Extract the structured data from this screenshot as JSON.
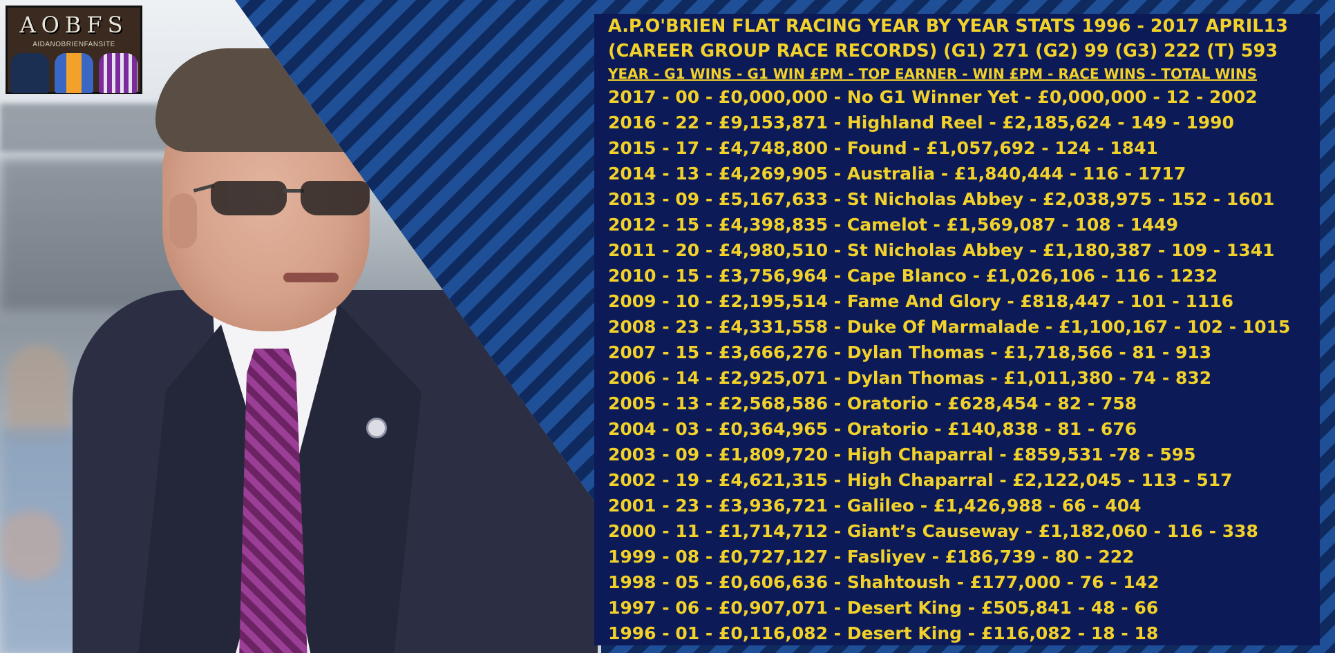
{
  "logo": {
    "title": "AOBFS",
    "subtitle": "AIDANOBRIENFANSITE"
  },
  "panel": {
    "title_line1": "A.P.O'BRIEN FLAT RACING YEAR BY YEAR STATS 1996 - 2017 APRIL13",
    "title_line2": "(CAREER GROUP RACE RECORDS) (G1) 271 (G2) 99 (G3) 222 (T) 593",
    "header": "YEAR - G1 WINS - G1 WIN £PM - TOP EARNER - WIN £PM - RACE WINS - TOTAL WINS",
    "rows": [
      "2017 - 00 - £0,000,000 - No G1 Winner Yet - £0,000,000 - 12 - 2002",
      "2016 - 22 - £9,153,871 - Highland Reel - £2,185,624 - 149 - 1990",
      "2015 - 17 - £4,748,800 - Found - £1,057,692 - 124 - 1841",
      "2014 - 13 - £4,269,905 - Australia - £1,840,444 - 116 - 1717",
      "2013 - 09 - £5,167,633 - St Nicholas Abbey - £2,038,975 - 152 - 1601",
      "2012 - 15 - £4,398,835 - Camelot - £1,569,087 - 108 - 1449",
      "2011 - 20 - £4,980,510 - St Nicholas Abbey - £1,180,387 - 109 - 1341",
      "2010 - 15 - £3,756,964 - Cape Blanco - £1,026,106 - 116 - 1232",
      "2009 - 10 - £2,195,514 - Fame And Glory - £818,447 - 101 - 1116",
      "2008 - 23 - £4,331,558 - Duke Of Marmalade - £1,100,167 - 102 - 1015",
      "2007 - 15 - £3,666,276 - Dylan Thomas - £1,718,566 - 81 - 913",
      "2006 - 14 - £2,925,071 - Dylan Thomas - £1,011,380 - 74 - 832",
      "2005 - 13 - £2,568,586 - Oratorio - £628,454 - 82 - 758",
      "2004 - 03 - £0,364,965 - Oratorio - £140,838 - 81 - 676",
      "2003 - 09 - £1,809,720 - High Chaparral - £859,531 -78 - 595",
      "2002 - 19 - £4,621,315 - High Chaparral - £2,122,045 - 113 - 517",
      "2001 - 23 - £3,936,721 - Galileo - £1,426,988 - 66 - 404",
      "2000 - 11 - £1,714,712 - Giant’s Causeway - £1,182,060 - 116 - 338",
      "1999 - 08 - £0,727,127 - Fasliyev - £186,739 - 80 - 222",
      "1998 - 05 - £0,606,636 - Shahtoush - £177,000 - 76 - 142",
      "1997 - 06 - £0,907,071 - Desert King - £505,841 - 48 - 66",
      "1996 - 01 - £0,116,082 - Desert King - £116,082 - 18 - 18"
    ]
  },
  "colors": {
    "text_gold": "#f2d12a",
    "panel_navy": "#0c1b58",
    "stripe_light": "#1f4f97",
    "stripe_dark": "#0f2a5e"
  }
}
